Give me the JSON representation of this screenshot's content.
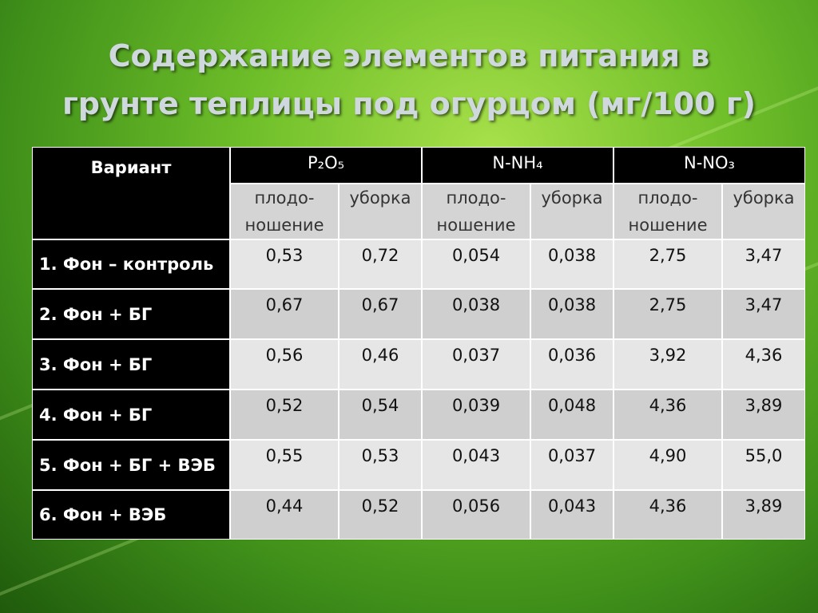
{
  "title": {
    "lines": [
      "Содержание элементов питания в",
      "грунте теплицы под огурцом (мг/100 г)"
    ]
  },
  "table": {
    "corner": "Вариант",
    "groups": [
      "P₂O₅",
      "N-NH₄",
      "N-NO₃"
    ],
    "subheaders": [
      "плодо-\nношение",
      "уборка",
      "плодо-\nношение",
      "уборка",
      "плодо-\nношение",
      "уборка"
    ],
    "rows": [
      {
        "label": "1. Фон – контроль",
        "cells": [
          "0,53",
          "0,72",
          "0,054",
          "0,038",
          "2,75",
          "3,47"
        ]
      },
      {
        "label": "2. Фон + БГ",
        "cells": [
          "0,67",
          "0,67",
          "0,038",
          "0,038",
          "2,75",
          "3,47"
        ]
      },
      {
        "label": "3. Фон + БГ",
        "cells": [
          "0,56",
          "0,46",
          "0,037",
          "0,036",
          "3,92",
          "4,36"
        ]
      },
      {
        "label": "4. Фон + БГ",
        "cells": [
          "0,52",
          "0,54",
          "0,039",
          "0,048",
          "4,36",
          "3,89"
        ]
      },
      {
        "label": "5. Фон + БГ + ВЭБ",
        "cells": [
          "0,55",
          "0,53",
          "0,043",
          "0,037",
          "4,90",
          "55,0"
        ]
      },
      {
        "label": "6. Фон + ВЭБ",
        "cells": [
          "0,44",
          "0,52",
          "0,056",
          "0,043",
          "4,36",
          "3,89"
        ]
      }
    ]
  }
}
